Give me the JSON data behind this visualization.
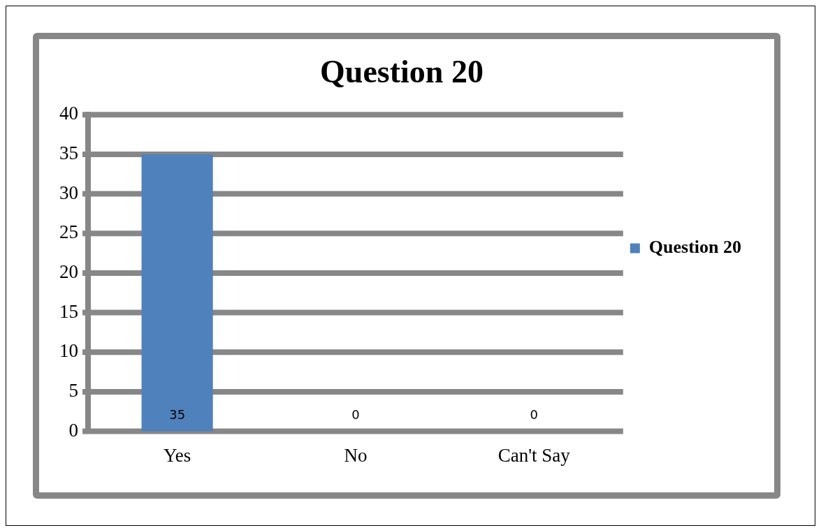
{
  "chart_data": {
    "type": "bar",
    "title": "Question 20",
    "categories": [
      "Yes",
      "No",
      "Can't Say"
    ],
    "series": [
      {
        "name": "Question 20",
        "color": "#4f81bd",
        "values": [
          35,
          0,
          0
        ]
      }
    ],
    "ylim": [
      0,
      40
    ],
    "yticks": [
      0,
      5,
      10,
      15,
      20,
      25,
      30,
      35,
      40
    ],
    "grid": "y",
    "legend": "right",
    "data_labels": true
  }
}
